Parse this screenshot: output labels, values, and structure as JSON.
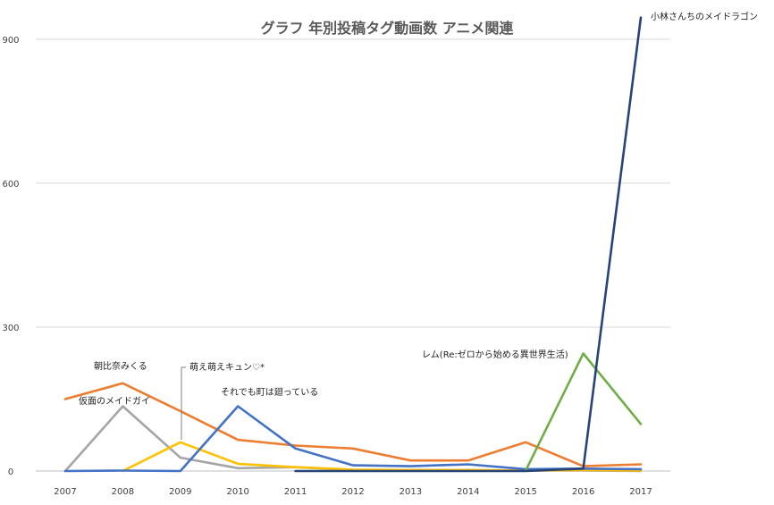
{
  "chart_data": {
    "type": "line",
    "title": "グラフ 年別投稿タグ動画数 アニメ関連",
    "xlabel": "",
    "ylabel": "",
    "ylim": [
      0,
      950
    ],
    "y_ticks": [
      0,
      300,
      600,
      900
    ],
    "grid": true,
    "categories": [
      "2007",
      "2008",
      "2009",
      "2010",
      "2011",
      "2012",
      "2013",
      "2014",
      "2015",
      "2016",
      "2017"
    ],
    "series": [
      {
        "name": "朝比奈みくる",
        "color": "#ED7D31",
        "values": [
          150,
          183,
          125,
          65,
          53,
          47,
          22,
          22,
          60,
          10,
          14
        ]
      },
      {
        "name": "仮面のメイドガイ",
        "color": "#A5A5A5",
        "values": [
          0,
          135,
          28,
          6,
          8,
          2,
          2,
          2,
          1,
          1,
          0
        ]
      },
      {
        "name": "萌え萌えキュン♡*",
        "color": "#FFC000",
        "values": [
          null,
          0,
          60,
          15,
          8,
          3,
          2,
          2,
          1,
          2,
          1
        ]
      },
      {
        "name": "それでも町は廻っている",
        "color": "#4472C4",
        "values": [
          0,
          1,
          0,
          135,
          47,
          12,
          10,
          14,
          4,
          5,
          4
        ]
      },
      {
        "name": "レム(Re:ゼロから始める異世界生活)",
        "color": "#70AD47",
        "values": [
          null,
          null,
          null,
          null,
          null,
          null,
          null,
          null,
          1,
          245,
          98
        ]
      },
      {
        "name": "小林さんちのメイドラゴン",
        "color": "#264478",
        "values": [
          null,
          null,
          null,
          null,
          0,
          0,
          0,
          0,
          0,
          5,
          945
        ]
      }
    ],
    "annotations": [
      {
        "text": "朝比奈みくる"
      },
      {
        "text": "仮面のメイドガイ"
      },
      {
        "text": "萌え萌えキュン♡*"
      },
      {
        "text": "それでも町は廻っている"
      },
      {
        "text": "レム(Re:ゼロから始める異世界生活)"
      },
      {
        "text": "小林さんちのメイドラゴン"
      }
    ]
  }
}
